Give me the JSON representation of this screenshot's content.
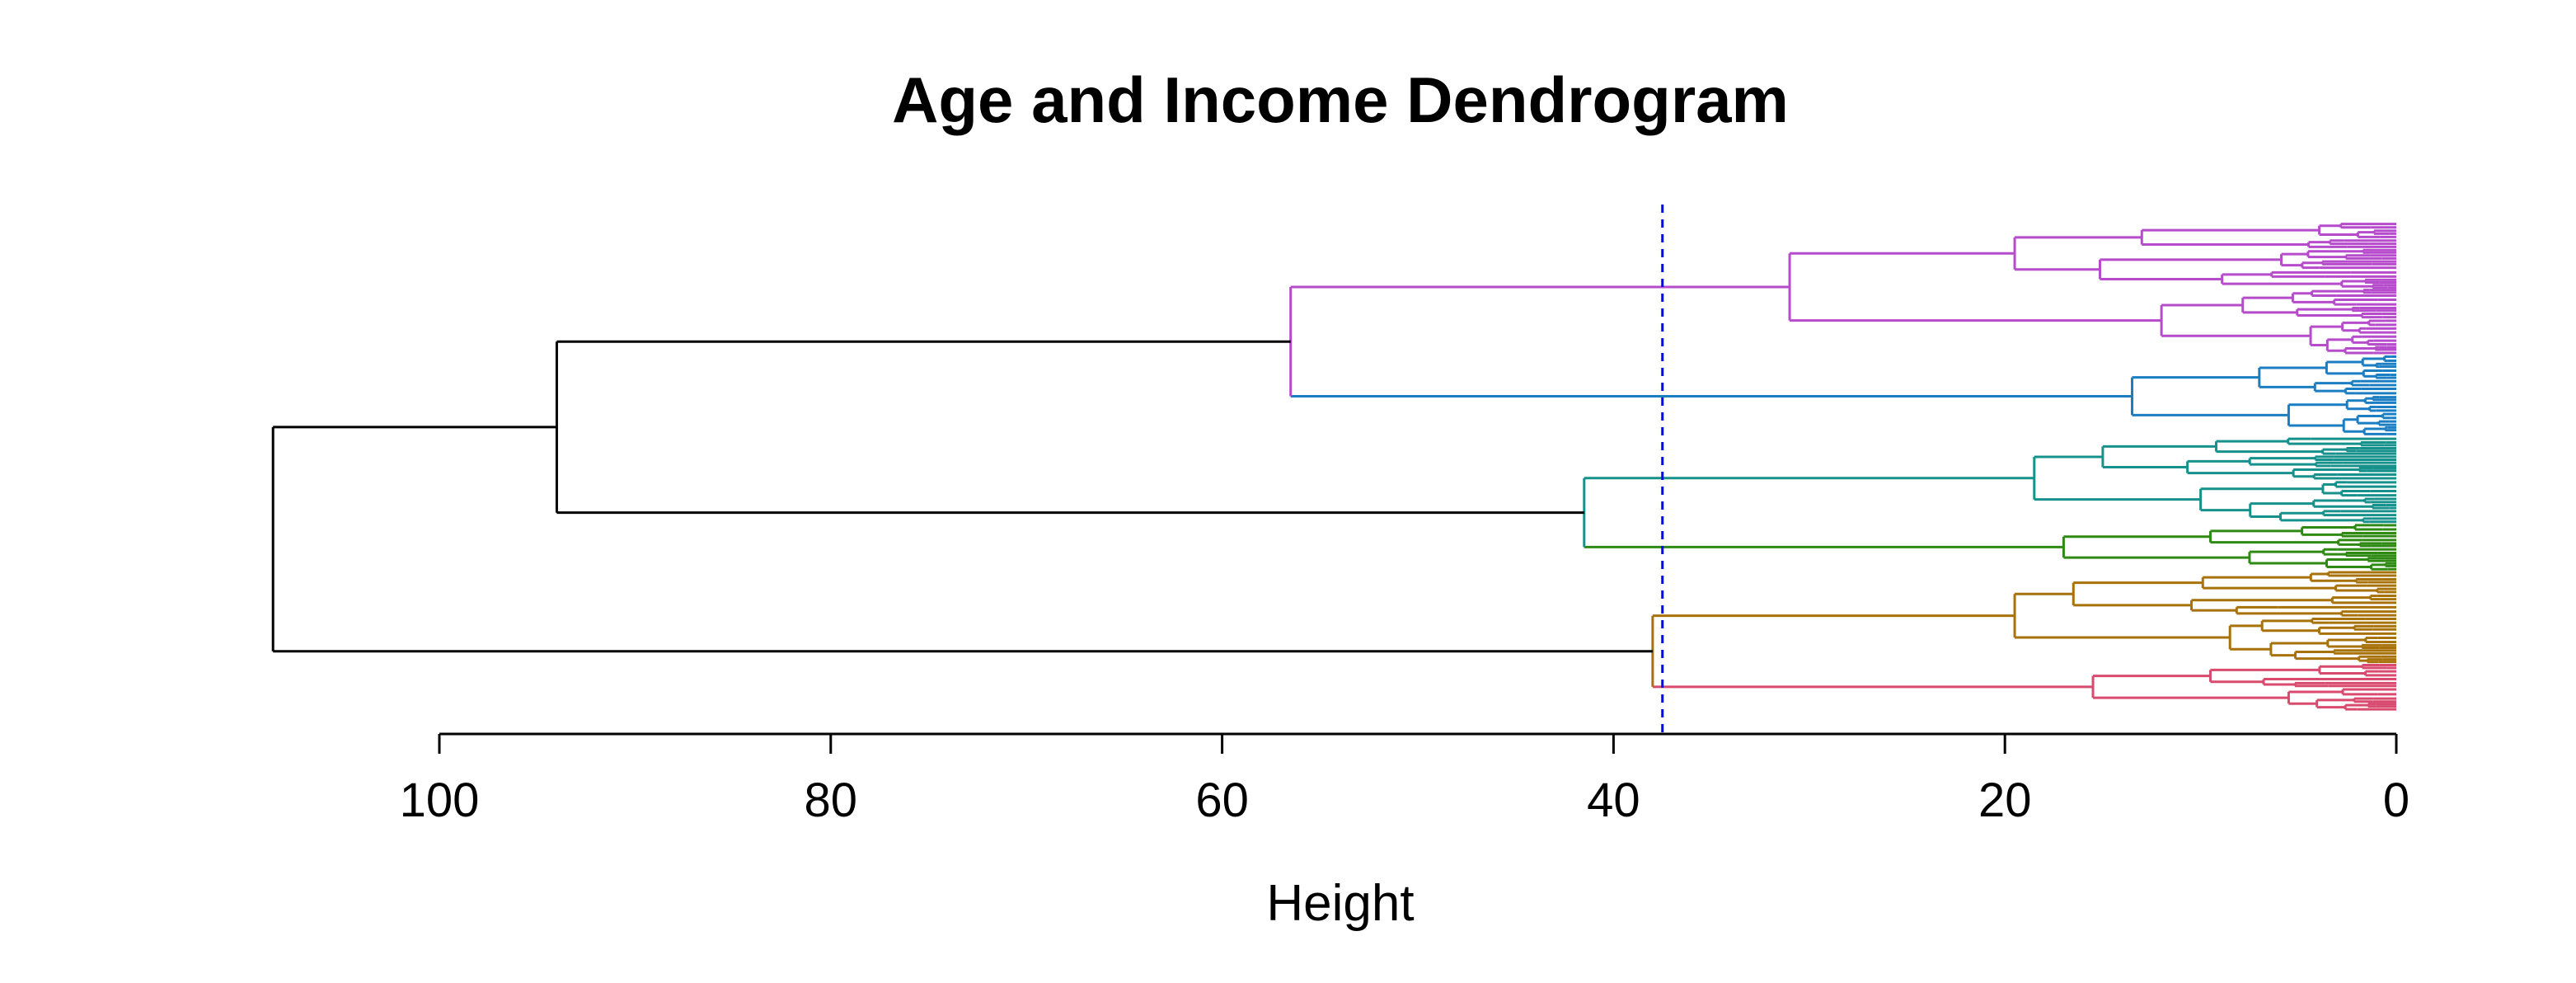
{
  "chart_data": {
    "type": "dendrogram",
    "orientation": "horizontal",
    "title": "Age and Income Dendrogram",
    "xlabel": "Height",
    "xlim": [
      100,
      0
    ],
    "x_ticks": [
      100,
      80,
      60,
      40,
      20,
      0
    ],
    "cut_height": 37.5,
    "cut_line_color": "#0000ff",
    "root_color": "#000000",
    "major_merges": [
      {
        "height": 108.5,
        "joins": [
          "group-1-4",
          "group-5-6"
        ],
        "color": "#000000"
      },
      {
        "height": 94,
        "joins": [
          "group-1-2",
          "group-3-4"
        ],
        "color": "#000000"
      },
      {
        "height": 56.5,
        "joins": [
          "cluster-1",
          "cluster-2"
        ],
        "color": "#000000"
      },
      {
        "height": 41.5,
        "joins": [
          "cluster-3",
          "cluster-4"
        ],
        "color": "#000000"
      },
      {
        "height": 38,
        "joins": [
          "cluster-5",
          "cluster-6"
        ],
        "color": "#000000"
      }
    ],
    "clusters": [
      {
        "id": "cluster-1",
        "color": "#b64bcb",
        "top_merge": 31,
        "sub_merges": [
          19.5,
          12,
          8.5
        ]
      },
      {
        "id": "cluster-2",
        "color": "#1c7ec2",
        "top_merge": 13.5,
        "sub_merges": [
          7,
          5.5
        ]
      },
      {
        "id": "cluster-3",
        "color": "#17918c",
        "top_merge": 18.5,
        "sub_merges": [
          15,
          10,
          7.5
        ]
      },
      {
        "id": "cluster-4",
        "color": "#2f8a14",
        "top_merge": 17,
        "sub_merges": [
          9.5,
          7.5
        ]
      },
      {
        "id": "cluster-5",
        "color": "#a8720b",
        "top_merge": 19.5,
        "sub_merges": [
          16.5,
          8.5,
          11
        ]
      },
      {
        "id": "cluster-6",
        "color": "#d84a6e",
        "top_merge": 15.5,
        "sub_merges": [
          9.5,
          5.5
        ]
      }
    ]
  }
}
